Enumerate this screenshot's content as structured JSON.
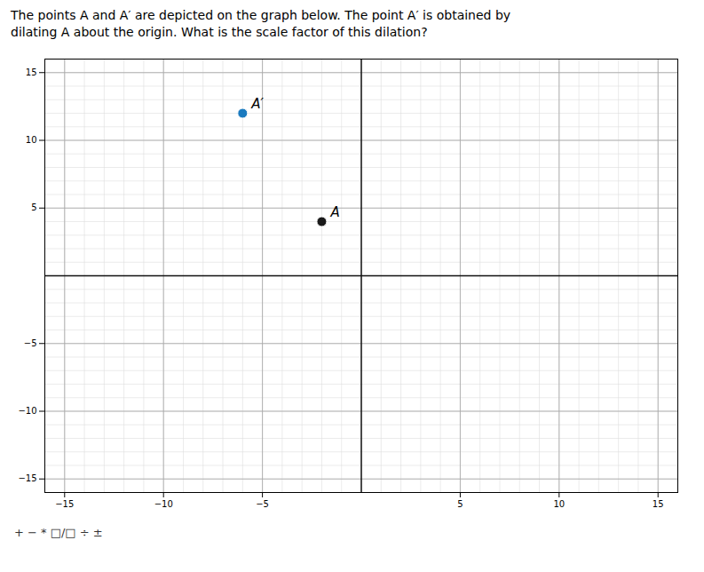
{
  "chart_data": {
    "type": "scatter",
    "title": "The points A and A′ are depicted on the graph below. The point A′ is obtained by",
    "subtitle": "dilating A about the origin. What is the scale factor of this dilation?",
    "x": [
      -2,
      -6
    ],
    "values": [
      4,
      12
    ],
    "colors": [
      "#1a1a1a",
      "#1a7abf"
    ],
    "annotations": [
      {
        "text": "A",
        "x": -2,
        "y": 4
      },
      {
        "text": "A′",
        "x": -6,
        "y": 12
      }
    ],
    "xlim": [
      -16,
      16
    ],
    "ylim": [
      -16,
      16
    ],
    "xticks": [
      -15,
      -10,
      -5,
      5,
      10,
      15
    ],
    "yticks": [
      -15,
      -10,
      -5,
      5,
      10,
      15
    ],
    "grid": true,
    "caption": "+ − * □/□ ÷ ±"
  }
}
